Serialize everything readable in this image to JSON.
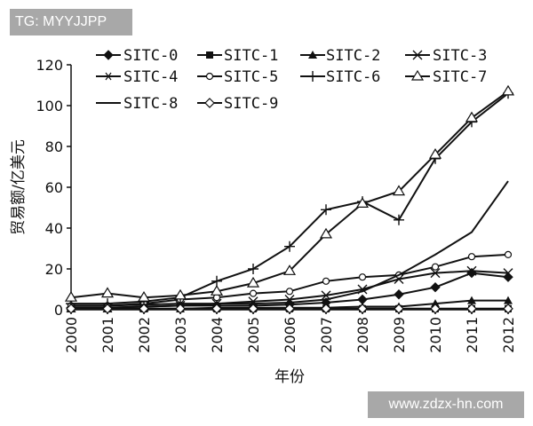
{
  "watermarks": {
    "top_left": "TG: MYYJJPP",
    "bottom_right": "www.zdzx-hn.com"
  },
  "chart_data": {
    "type": "line",
    "title": "",
    "xlabel": "年份",
    "ylabel": "贸易额/亿美元",
    "x": [
      2000,
      2001,
      2002,
      2003,
      2004,
      2005,
      2006,
      2007,
      2008,
      2009,
      2010,
      2011,
      2012
    ],
    "x_tick_labels": [
      "2000",
      "2001",
      "2002",
      "2003",
      "2004",
      "2005",
      "2006",
      "2007",
      "2008",
      "2009",
      "2010",
      "2011",
      "2012"
    ],
    "ylim": [
      0,
      120
    ],
    "y_ticks": [
      0,
      20,
      40,
      60,
      80,
      100,
      120
    ],
    "y_tick_labels": [
      "0",
      "20",
      "40",
      "60",
      "80",
      "100",
      "120"
    ],
    "legend_position": "top",
    "series": [
      {
        "name": "SITC-0",
        "marker": "diamond-filled",
        "values": [
          1,
          1,
          1.5,
          2,
          2,
          2,
          2.5,
          3.5,
          5,
          7.5,
          11,
          18,
          16
        ]
      },
      {
        "name": "SITC-1",
        "marker": "square-filled",
        "values": [
          0.5,
          0.5,
          0.5,
          0.5,
          0.5,
          0.5,
          0.5,
          0.5,
          0.5,
          0.5,
          0.5,
          0.5,
          0.5
        ]
      },
      {
        "name": "SITC-2",
        "marker": "triangle-filled",
        "values": [
          0.5,
          0.5,
          0.5,
          0.5,
          1,
          1,
          1,
          1,
          1.5,
          1.5,
          3,
          4.5,
          4.5
        ]
      },
      {
        "name": "SITC-3",
        "marker": "x",
        "values": [
          1,
          1,
          1.5,
          2,
          3,
          4,
          5,
          7,
          10,
          15,
          18,
          19,
          18
        ]
      },
      {
        "name": "SITC-4",
        "marker": "asterisk",
        "values": [
          0.5,
          0.5,
          0.5,
          0.5,
          0.5,
          0.5,
          0.5,
          0.5,
          0.5,
          0.5,
          0.5,
          0.5,
          0.5
        ]
      },
      {
        "name": "SITC-5",
        "marker": "circle-open",
        "values": [
          2,
          2,
          3,
          5,
          6,
          8,
          9,
          14,
          16,
          17,
          21,
          26,
          27
        ]
      },
      {
        "name": "SITC-6",
        "marker": "plus",
        "values": [
          3,
          3,
          4,
          6,
          14,
          20,
          31,
          49,
          53,
          44,
          74,
          92,
          106
        ]
      },
      {
        "name": "SITC-7",
        "marker": "triangle-open",
        "values": [
          6,
          8,
          6,
          7,
          9,
          13,
          19,
          37,
          52,
          58,
          76,
          94,
          107
        ]
      },
      {
        "name": "SITC-8",
        "marker": "none",
        "values": [
          2,
          2,
          2.5,
          3,
          3,
          3,
          3.5,
          5,
          9,
          17,
          27,
          38,
          63
        ]
      },
      {
        "name": "SITC-9",
        "marker": "diamond-open",
        "values": [
          0.5,
          0.5,
          0.5,
          0.5,
          0.5,
          0.5,
          0.5,
          0.5,
          0.5,
          0.5,
          0.5,
          0.5,
          0.5
        ]
      }
    ]
  }
}
